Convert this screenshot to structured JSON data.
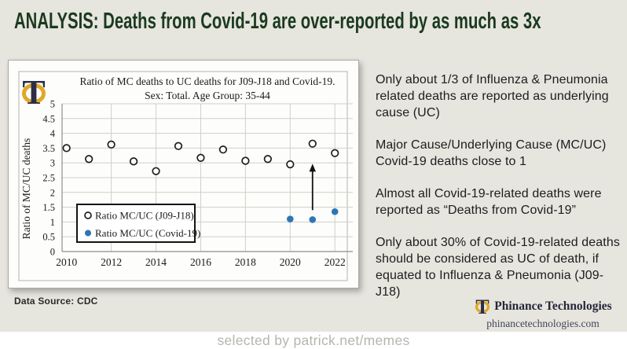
{
  "slide": {
    "title": "ANALYSIS:  Deaths from Covid-19 are over-reported by as much as 3x",
    "data_source": "Data Source: CDC",
    "watermark": "selected by patrick.net/memes"
  },
  "bullets": [
    "Only about 1/3 of Influenza & Pneumonia\nrelated deaths are reported as underlying\ncause (UC)",
    "Major Cause/Underlying Cause (MC/UC)\nCovid-19 deaths close to 1",
    "Almost all Covid-19-related deaths were\nreported as “Deaths from Covid-19”",
    "Only about 30% of Covid-19-related deaths\nshould be considered as UC of death, if\nequated to Influenza & Pneumonia (J09-J18)"
  ],
  "brand": {
    "name": "Phinance Technologies",
    "website": "phinancetechnologies.com",
    "logo_icon": "phi-icon",
    "gold": "#DFA826",
    "navy": "#2D2D49"
  },
  "chart_data": {
    "type": "scatter",
    "title": "Ratio of MC deaths to UC deaths for J09-J18 and Covid-19.",
    "subtitle": "Sex: Total. Age Group: 35-44",
    "ylabel": "Ratio of MC/UC deaths",
    "ylim": [
      0,
      5
    ],
    "ytick_step": 0.5,
    "xlim": [
      2009.8,
      2022.8
    ],
    "xticks": [
      2010,
      2012,
      2014,
      2016,
      2018,
      2020,
      2022
    ],
    "grid": true,
    "legend_position": "lower-left",
    "series": [
      {
        "name": "Ratio MC/UC (J09-J18)",
        "marker": "open-circle",
        "color": "#1f1f1f",
        "x": [
          2010,
          2011,
          2012,
          2013,
          2014,
          2015,
          2016,
          2017,
          2018,
          2019,
          2020,
          2021,
          2022
        ],
        "values": [
          3.5,
          3.13,
          3.62,
          3.05,
          2.72,
          3.57,
          3.17,
          3.45,
          3.07,
          3.13,
          2.95,
          3.65,
          3.33
        ]
      },
      {
        "name": "Ratio MC/UC (Covid-19)",
        "marker": "filled-circle",
        "color": "#2E75B6",
        "x": [
          2020,
          2021,
          2022
        ],
        "values": [
          1.1,
          1.08,
          1.35
        ]
      }
    ],
    "annotation_arrow": {
      "x": 2021,
      "y_from": 1.4,
      "y_to": 2.97
    }
  }
}
